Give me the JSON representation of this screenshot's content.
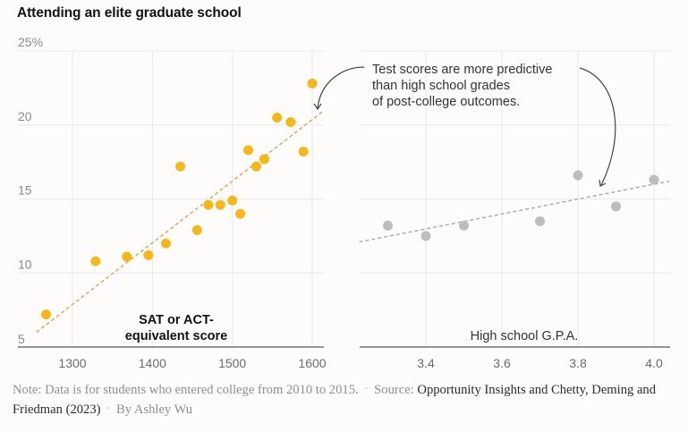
{
  "title": "Attending an elite graduate school",
  "annotation": {
    "lines": [
      "Test scores are more predictive",
      "than high school grades",
      "of post-college outcomes."
    ]
  },
  "footer": {
    "note": "Note: Data is for students who entered college from 2010 to 2015.",
    "source_label": "Source:",
    "source_line1": "Opportunity Insights",
    "source_line2": "and Chetty, Deming and Friedman (2023)",
    "byline": "By Ashley Wu",
    "separator": "•"
  },
  "colors": {
    "sat_dots": "#f5b71d",
    "sat_trend": "#d9a25a",
    "gpa_dots": "#bdbdbd",
    "gpa_trend": "#a8a8a8",
    "gridline": "#ececec",
    "baseline": "#555555",
    "arrow": "#444444"
  },
  "chart_data": [
    {
      "type": "scatter",
      "title": "Attending an elite graduate school",
      "xlabel": "SAT or ACT-equivalent score",
      "xlabel_lines": [
        "SAT or ACT-",
        "equivalent score"
      ],
      "ylabel": "",
      "xlim": [
        1230,
        1615
      ],
      "ylim": [
        5,
        25
      ],
      "x_ticks": [
        1300,
        1400,
        1500,
        1600
      ],
      "x_tick_labels": [
        "1300",
        "1400",
        "1500",
        "1600"
      ],
      "y_ticks": [
        25,
        20,
        15,
        10,
        5
      ],
      "y_tick_labels": [
        "25%",
        "20",
        "15",
        "10",
        "5"
      ],
      "grid": true,
      "points": [
        {
          "x": 1267,
          "y": 7.2
        },
        {
          "x": 1329,
          "y": 10.8
        },
        {
          "x": 1368,
          "y": 11.1
        },
        {
          "x": 1395,
          "y": 11.2
        },
        {
          "x": 1417,
          "y": 12.0
        },
        {
          "x": 1435,
          "y": 17.2
        },
        {
          "x": 1456,
          "y": 12.9
        },
        {
          "x": 1470,
          "y": 14.6
        },
        {
          "x": 1485,
          "y": 14.6
        },
        {
          "x": 1500,
          "y": 14.9
        },
        {
          "x": 1510,
          "y": 14.0
        },
        {
          "x": 1520,
          "y": 18.3
        },
        {
          "x": 1530,
          "y": 17.2
        },
        {
          "x": 1540,
          "y": 17.7
        },
        {
          "x": 1556,
          "y": 20.5
        },
        {
          "x": 1573,
          "y": 20.2
        },
        {
          "x": 1589,
          "y": 18.2
        },
        {
          "x": 1600,
          "y": 22.8
        }
      ],
      "trendline": {
        "x": [
          1255,
          1614
        ],
        "y": [
          6.0,
          20.95
        ]
      }
    },
    {
      "type": "scatter",
      "xlabel": "High school G.P.A.",
      "ylabel": "",
      "xlim": [
        3.225,
        4.04
      ],
      "ylim": [
        5,
        25
      ],
      "x_ticks": [
        3.4,
        3.6,
        3.8,
        4.0
      ],
      "x_tick_labels": [
        "3.4",
        "3.6",
        "3.8",
        "4.0"
      ],
      "y_ticks": [
        25,
        20,
        15,
        10
      ],
      "grid": true,
      "points": [
        {
          "x": 3.3,
          "y": 13.2
        },
        {
          "x": 3.4,
          "y": 12.5
        },
        {
          "x": 3.5,
          "y": 13.2
        },
        {
          "x": 3.7,
          "y": 13.5
        },
        {
          "x": 3.8,
          "y": 16.6
        },
        {
          "x": 3.9,
          "y": 14.5
        },
        {
          "x": 4.0,
          "y": 16.3
        }
      ],
      "trendline": {
        "x": [
          3.225,
          4.04
        ],
        "y": [
          12.1,
          16.2
        ]
      }
    }
  ]
}
